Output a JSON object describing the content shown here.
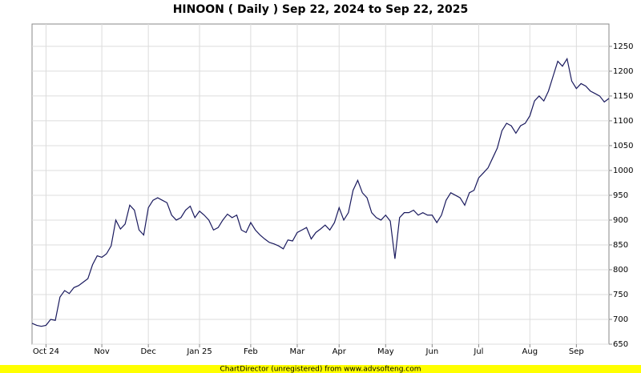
{
  "chart_data": {
    "type": "line",
    "title": "HINOON ( Daily ) Sep 22, 2024 to Sep 22, 2025",
    "categories": [
      null,
      null,
      null,
      "Oct 24",
      null,
      null,
      null,
      null,
      null,
      null,
      null,
      null,
      null,
      null,
      null,
      "Nov",
      null,
      null,
      null,
      null,
      null,
      null,
      null,
      null,
      null,
      "Dec",
      null,
      null,
      null,
      null,
      null,
      null,
      null,
      null,
      null,
      null,
      "Jan 25",
      null,
      null,
      null,
      null,
      null,
      null,
      null,
      null,
      null,
      null,
      "Feb",
      null,
      null,
      null,
      null,
      null,
      null,
      null,
      null,
      null,
      "Mar",
      null,
      null,
      null,
      null,
      null,
      null,
      null,
      null,
      "Apr",
      null,
      null,
      null,
      null,
      null,
      null,
      null,
      null,
      null,
      "May",
      null,
      null,
      null,
      null,
      null,
      null,
      null,
      null,
      null,
      "Jun",
      null,
      null,
      null,
      null,
      null,
      null,
      null,
      null,
      null,
      "Jul",
      null,
      null,
      null,
      null,
      null,
      null,
      null,
      null,
      null,
      null,
      "Aug",
      null,
      null,
      null,
      null,
      null,
      null,
      null,
      null,
      null,
      "Sep",
      null,
      null,
      null,
      null,
      null,
      null,
      null
    ],
    "series": [
      {
        "name": "HINOON",
        "color": "#1a1a5e",
        "values": [
          692,
          688,
          686,
          688,
          700,
          698,
          745,
          758,
          752,
          764,
          768,
          775,
          782,
          810,
          828,
          825,
          832,
          848,
          900,
          882,
          892,
          930,
          920,
          880,
          870,
          925,
          940,
          945,
          940,
          935,
          910,
          900,
          905,
          920,
          928,
          905,
          918,
          910,
          900,
          880,
          885,
          900,
          912,
          905,
          910,
          880,
          875,
          895,
          880,
          870,
          862,
          855,
          852,
          848,
          842,
          860,
          858,
          875,
          880,
          885,
          862,
          875,
          882,
          890,
          880,
          895,
          925,
          900,
          915,
          960,
          980,
          955,
          945,
          915,
          905,
          900,
          910,
          898,
          822,
          905,
          915,
          915,
          920,
          910,
          915,
          910,
          910,
          895,
          910,
          940,
          955,
          950,
          945,
          930,
          955,
          960,
          985,
          995,
          1005,
          1025,
          1045,
          1080,
          1095,
          1090,
          1075,
          1090,
          1095,
          1110,
          1140,
          1150,
          1140,
          1160,
          1190,
          1220,
          1210,
          1225,
          1180,
          1165,
          1175,
          1170,
          1160,
          1155,
          1150,
          1138,
          1145
        ]
      }
    ],
    "ylim": [
      650,
      1295
    ],
    "yticks": [
      650,
      700,
      750,
      800,
      850,
      900,
      950,
      1000,
      1050,
      1100,
      1150,
      1200,
      1250
    ],
    "grid": true
  },
  "footer": "ChartDirector (unregistered) from www.advsofteng.com"
}
